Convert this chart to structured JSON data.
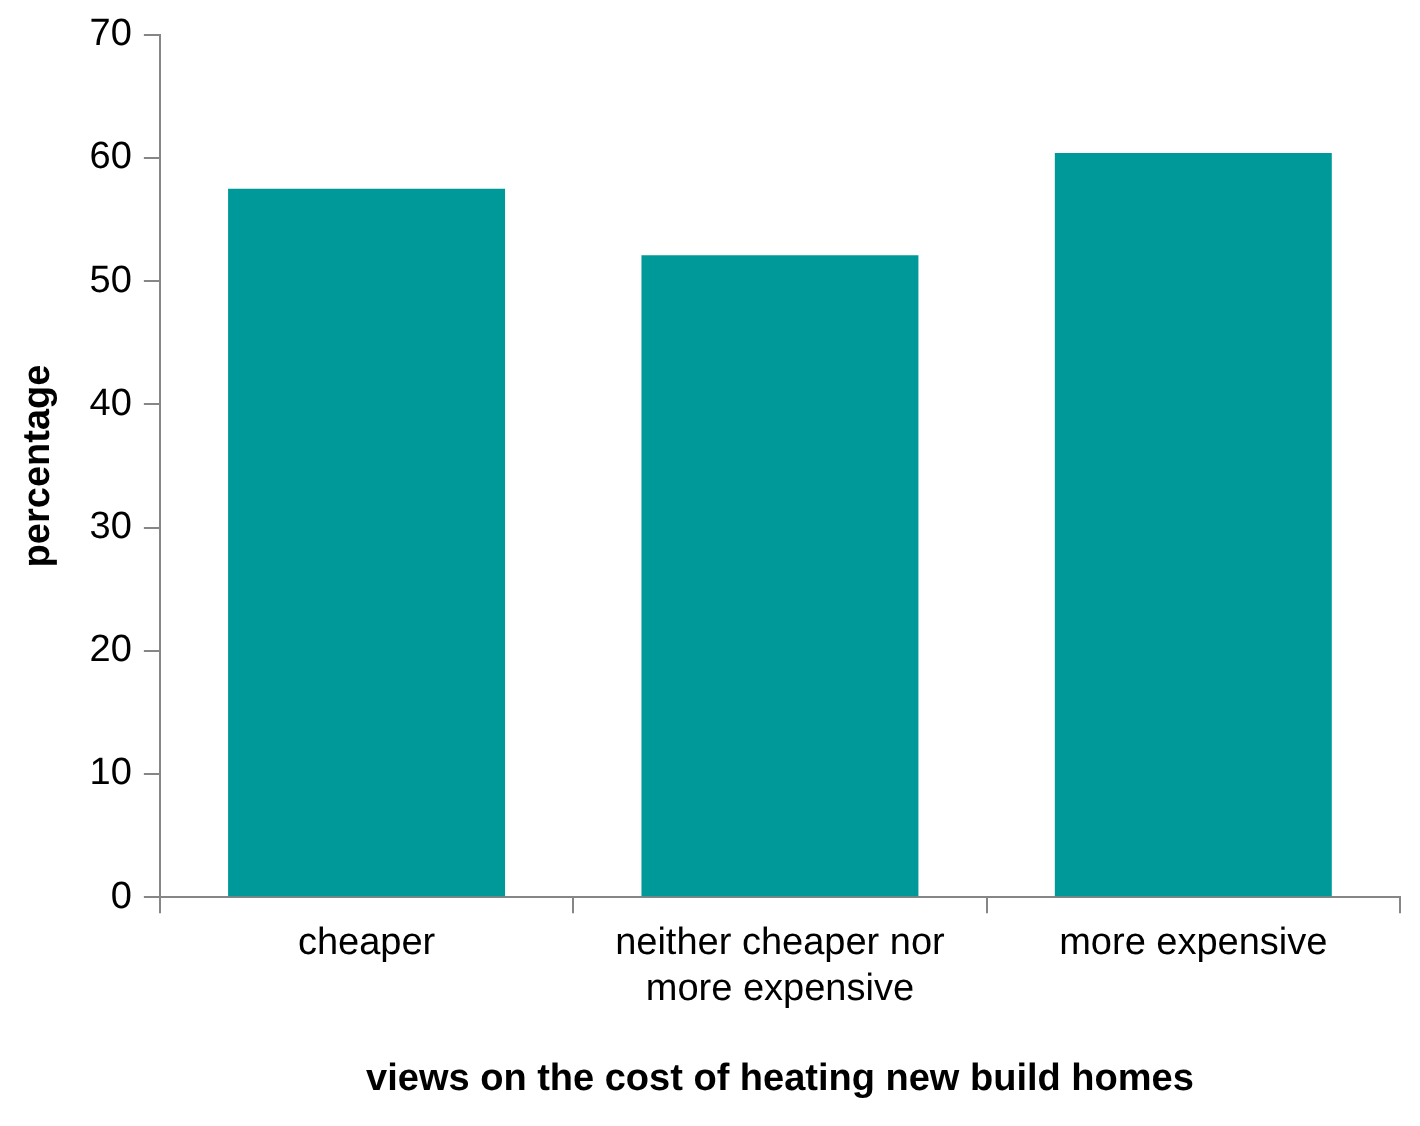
{
  "chart_data": {
    "type": "bar",
    "xlabel": "views on the cost of heating new build homes",
    "ylabel": "percentage",
    "categories": [
      "cheaper",
      "neither cheaper nor more expensive",
      "more expensive"
    ],
    "values": [
      57.5,
      52.1,
      60.4
    ],
    "color": "#009999",
    "ylim": [
      0,
      70
    ],
    "yticks": [
      0,
      10,
      20,
      30,
      40,
      50,
      60,
      70
    ],
    "grid": false
  }
}
